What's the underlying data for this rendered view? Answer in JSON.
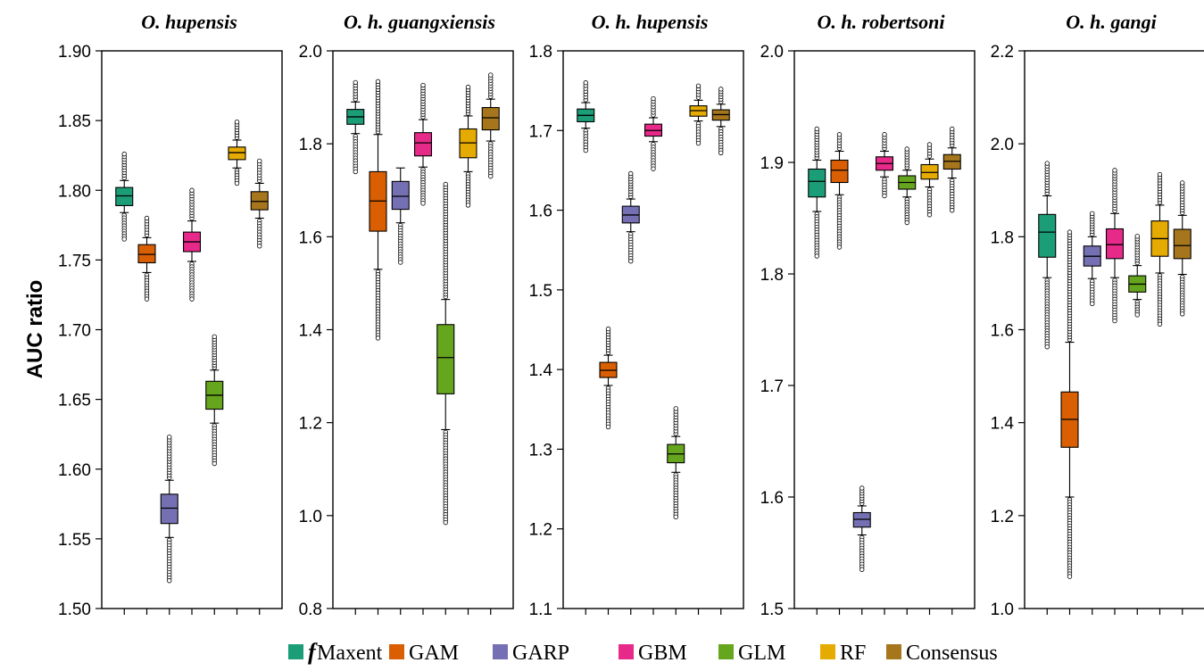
{
  "chart_data": {
    "type": "box",
    "ylabel": "AUC ratio",
    "models": [
      {
        "name": "Maxent",
        "prefix": "f",
        "color": "#1b9e77"
      },
      {
        "name": "GAM",
        "color": "#d95f02"
      },
      {
        "name": "GARP",
        "color": "#7570b3"
      },
      {
        "name": "GBM",
        "color": "#e7298a"
      },
      {
        "name": "GLM",
        "color": "#66a61e"
      },
      {
        "name": "RF",
        "color": "#e6ab02"
      },
      {
        "name": "Consensus",
        "color": "#a6761d"
      }
    ],
    "panels": [
      {
        "title": "O. hupensis",
        "ylim": [
          1.5,
          1.9
        ],
        "yticks": [
          "1.50",
          "1.55",
          "1.60",
          "1.65",
          "1.70",
          "1.75",
          "1.80",
          "1.85",
          "1.90"
        ],
        "boxes": [
          {
            "model": "Maxent",
            "q1": 1.789,
            "median": 1.796,
            "q3": 1.802,
            "whisker_low": 1.784,
            "whisker_high": 1.807,
            "outlier_low": 1.765,
            "outlier_high": 1.826
          },
          {
            "model": "GAM",
            "q1": 1.748,
            "median": 1.754,
            "q3": 1.761,
            "whisker_low": 1.741,
            "whisker_high": 1.766,
            "outlier_low": 1.722,
            "outlier_high": 1.78
          },
          {
            "model": "GARP",
            "q1": 1.561,
            "median": 1.572,
            "q3": 1.582,
            "whisker_low": 1.551,
            "whisker_high": 1.592,
            "outlier_low": 1.52,
            "outlier_high": 1.623
          },
          {
            "model": "GBM",
            "q1": 1.756,
            "median": 1.763,
            "q3": 1.77,
            "whisker_low": 1.749,
            "whisker_high": 1.778,
            "outlier_low": 1.722,
            "outlier_high": 1.8
          },
          {
            "model": "GLM",
            "q1": 1.643,
            "median": 1.653,
            "q3": 1.663,
            "whisker_low": 1.633,
            "whisker_high": 1.671,
            "outlier_low": 1.604,
            "outlier_high": 1.695
          },
          {
            "model": "RF",
            "q1": 1.822,
            "median": 1.827,
            "q3": 1.831,
            "whisker_low": 1.816,
            "whisker_high": 1.836,
            "outlier_low": 1.805,
            "outlier_high": 1.849
          },
          {
            "model": "Consensus",
            "q1": 1.786,
            "median": 1.792,
            "q3": 1.799,
            "whisker_low": 1.78,
            "whisker_high": 1.805,
            "outlier_low": 1.76,
            "outlier_high": 1.821
          }
        ]
      },
      {
        "title": "O. h. guangxiensis",
        "ylim": [
          0.8,
          2.0
        ],
        "yticks": [
          "0.8",
          "1.0",
          "1.2",
          "1.4",
          "1.6",
          "1.8",
          "2.0"
        ],
        "boxes": [
          {
            "model": "Maxent",
            "q1": 1.842,
            "median": 1.858,
            "q3": 1.874,
            "whisker_low": 1.822,
            "whisker_high": 1.89,
            "outlier_low": 1.74,
            "outlier_high": 1.932
          },
          {
            "model": "GAM",
            "q1": 1.612,
            "median": 1.677,
            "q3": 1.74,
            "whisker_low": 1.53,
            "whisker_high": 1.82,
            "outlier_low": 1.382,
            "outlier_high": 1.934
          },
          {
            "model": "GARP",
            "q1": 1.659,
            "median": 1.687,
            "q3": 1.719,
            "whisker_low": 1.63,
            "whisker_high": 1.748,
            "outlier_low": 1.545,
            "outlier_high": 1.748
          },
          {
            "model": "GBM",
            "q1": 1.774,
            "median": 1.802,
            "q3": 1.824,
            "whisker_low": 1.75,
            "whisker_high": 1.852,
            "outlier_low": 1.672,
            "outlier_high": 1.926
          },
          {
            "model": "GLM",
            "q1": 1.262,
            "median": 1.34,
            "q3": 1.411,
            "whisker_low": 1.185,
            "whisker_high": 1.465,
            "outlier_low": 0.985,
            "outlier_high": 1.713
          },
          {
            "model": "RF",
            "q1": 1.77,
            "median": 1.802,
            "q3": 1.832,
            "whisker_low": 1.74,
            "whisker_high": 1.86,
            "outlier_low": 1.668,
            "outlier_high": 1.922
          },
          {
            "model": "Consensus",
            "q1": 1.83,
            "median": 1.856,
            "q3": 1.878,
            "whisker_low": 1.806,
            "whisker_high": 1.896,
            "outlier_low": 1.73,
            "outlier_high": 1.948
          }
        ]
      },
      {
        "title": "O. h. hupensis",
        "ylim": [
          1.1,
          1.8
        ],
        "yticks": [
          "1.1",
          "1.2",
          "1.3",
          "1.4",
          "1.5",
          "1.6",
          "1.7",
          "1.8"
        ],
        "boxes": [
          {
            "model": "Maxent",
            "q1": 1.711,
            "median": 1.719,
            "q3": 1.727,
            "whisker_low": 1.703,
            "whisker_high": 1.735,
            "outlier_low": 1.675,
            "outlier_high": 1.76
          },
          {
            "model": "GAM",
            "q1": 1.39,
            "median": 1.399,
            "q3": 1.409,
            "whisker_low": 1.38,
            "whisker_high": 1.418,
            "outlier_low": 1.328,
            "outlier_high": 1.451
          },
          {
            "model": "GARP",
            "q1": 1.584,
            "median": 1.594,
            "q3": 1.605,
            "whisker_low": 1.573,
            "whisker_high": 1.614,
            "outlier_low": 1.536,
            "outlier_high": 1.646
          },
          {
            "model": "GBM",
            "q1": 1.693,
            "median": 1.7,
            "q3": 1.708,
            "whisker_low": 1.686,
            "whisker_high": 1.716,
            "outlier_low": 1.652,
            "outlier_high": 1.74
          },
          {
            "model": "GLM",
            "q1": 1.283,
            "median": 1.294,
            "q3": 1.306,
            "whisker_low": 1.271,
            "whisker_high": 1.316,
            "outlier_low": 1.215,
            "outlier_high": 1.351
          },
          {
            "model": "RF",
            "q1": 1.718,
            "median": 1.725,
            "q3": 1.731,
            "whisker_low": 1.712,
            "whisker_high": 1.738,
            "outlier_low": 1.684,
            "outlier_high": 1.756
          },
          {
            "model": "Consensus",
            "q1": 1.713,
            "median": 1.72,
            "q3": 1.726,
            "whisker_low": 1.705,
            "whisker_high": 1.733,
            "outlier_low": 1.672,
            "outlier_high": 1.752
          }
        ]
      },
      {
        "title": "O. h. robertsoni",
        "ylim": [
          1.5,
          2.0
        ],
        "yticks": [
          "1.5",
          "1.6",
          "1.7",
          "1.8",
          "1.9",
          "2.0"
        ],
        "boxes": [
          {
            "model": "Maxent",
            "q1": 1.869,
            "median": 1.883,
            "q3": 1.894,
            "whisker_low": 1.856,
            "whisker_high": 1.902,
            "outlier_low": 1.816,
            "outlier_high": 1.93
          },
          {
            "model": "GAM",
            "q1": 1.882,
            "median": 1.893,
            "q3": 1.902,
            "whisker_low": 1.871,
            "whisker_high": 1.91,
            "outlier_low": 1.824,
            "outlier_high": 1.925
          },
          {
            "model": "GARP",
            "q1": 1.573,
            "median": 1.58,
            "q3": 1.586,
            "whisker_low": 1.566,
            "whisker_high": 1.592,
            "outlier_low": 1.535,
            "outlier_high": 1.608
          },
          {
            "model": "GBM",
            "q1": 1.893,
            "median": 1.899,
            "q3": 1.905,
            "whisker_low": 1.887,
            "whisker_high": 1.91,
            "outlier_low": 1.87,
            "outlier_high": 1.925
          },
          {
            "model": "GLM",
            "q1": 1.876,
            "median": 1.882,
            "q3": 1.888,
            "whisker_low": 1.869,
            "whisker_high": 1.893,
            "outlier_low": 1.846,
            "outlier_high": 1.912
          },
          {
            "model": "RF",
            "q1": 1.885,
            "median": 1.891,
            "q3": 1.898,
            "whisker_low": 1.878,
            "whisker_high": 1.903,
            "outlier_low": 1.853,
            "outlier_high": 1.916
          },
          {
            "model": "Consensus",
            "q1": 1.894,
            "median": 1.901,
            "q3": 1.907,
            "whisker_low": 1.886,
            "whisker_high": 1.913,
            "outlier_low": 1.857,
            "outlier_high": 1.93
          }
        ]
      },
      {
        "title": "O. h. gangi",
        "ylim": [
          1.0,
          2.2
        ],
        "yticks": [
          "1.0",
          "1.2",
          "1.4",
          "1.6",
          "1.8",
          "2.0",
          "2.2"
        ],
        "boxes": [
          {
            "model": "Maxent",
            "q1": 1.756,
            "median": 1.81,
            "q3": 1.848,
            "whisker_low": 1.712,
            "whisker_high": 1.888,
            "outlier_low": 1.563,
            "outlier_high": 1.958
          },
          {
            "model": "GAM",
            "q1": 1.347,
            "median": 1.407,
            "q3": 1.466,
            "whisker_low": 1.24,
            "whisker_high": 1.573,
            "outlier_low": 1.069,
            "outlier_high": 1.81
          },
          {
            "model": "GARP",
            "q1": 1.737,
            "median": 1.758,
            "q3": 1.78,
            "whisker_low": 1.71,
            "whisker_high": 1.8,
            "outlier_low": 1.656,
            "outlier_high": 1.85
          },
          {
            "model": "GBM",
            "q1": 1.753,
            "median": 1.783,
            "q3": 1.817,
            "whisker_low": 1.712,
            "whisker_high": 1.85,
            "outlier_low": 1.619,
            "outlier_high": 1.943
          },
          {
            "model": "GLM",
            "q1": 1.681,
            "median": 1.698,
            "q3": 1.716,
            "whisker_low": 1.665,
            "whisker_high": 1.738,
            "outlier_low": 1.632,
            "outlier_high": 1.801
          },
          {
            "model": "RF",
            "q1": 1.758,
            "median": 1.796,
            "q3": 1.834,
            "whisker_low": 1.722,
            "whisker_high": 1.868,
            "outlier_low": 1.612,
            "outlier_high": 1.934
          },
          {
            "model": "Consensus",
            "q1": 1.753,
            "median": 1.781,
            "q3": 1.816,
            "whisker_low": 1.719,
            "whisker_high": 1.846,
            "outlier_low": 1.634,
            "outlier_high": 1.916
          }
        ]
      }
    ]
  }
}
